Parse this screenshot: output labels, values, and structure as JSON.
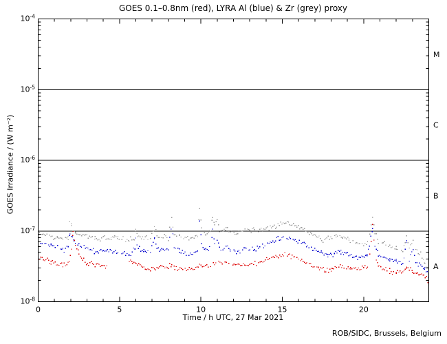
{
  "chart_data": {
    "type": "scatter",
    "title": "GOES 0.1–0.8nm (red), LYRA Al (blue) & Zr (grey) proxy",
    "xlabel": "Time / h UTC, 27 Mar 2021",
    "ylabel": "GOES Irradiance / (W m⁻²)",
    "attribution": "ROB/SIDC, Brussels, Belgium",
    "x_axis": {
      "min": 0,
      "max": 24,
      "minor_step": 1,
      "major_ticks": [
        0,
        5,
        10,
        15,
        20
      ],
      "tick_labels": [
        "0",
        "5",
        "10",
        "15",
        "20"
      ]
    },
    "y_axis": {
      "scale": "log",
      "min": 1e-08,
      "max": 0.0001,
      "ticks": [
        {
          "value": 0.0001,
          "base": "10",
          "exp": "-4"
        },
        {
          "value": 1e-05,
          "base": "10",
          "exp": "-5"
        },
        {
          "value": 1e-06,
          "base": "10",
          "exp": "-6"
        },
        {
          "value": 1e-07,
          "base": "10",
          "exp": "-7"
        },
        {
          "value": 1e-08,
          "base": "10",
          "exp": "-8"
        }
      ]
    },
    "reference_lines": [
      1e-05,
      1e-06,
      1e-07
    ],
    "flare_classes": [
      {
        "label": "M",
        "between": [
          1e-05,
          0.0001
        ]
      },
      {
        "label": "C",
        "between": [
          1e-06,
          1e-05
        ]
      },
      {
        "label": "B",
        "between": [
          1e-07,
          1e-06
        ]
      },
      {
        "label": "A",
        "between": [
          1e-08,
          1e-07
        ]
      }
    ],
    "series": [
      {
        "id": "zr-grey",
        "name": "Zr (grey) proxy",
        "color": "#999999",
        "gaps": [],
        "points": [
          [
            0,
            9.2e-08
          ],
          [
            0.3,
            9e-08
          ],
          [
            0.7,
            8.6e-08
          ],
          [
            1.2,
            8e-08
          ],
          [
            1.6,
            7.8e-08
          ],
          [
            1.85,
            8.2e-08
          ],
          [
            1.95,
            1.55e-07
          ],
          [
            2.05,
            1.1e-07
          ],
          [
            2.3,
            9.3e-08
          ],
          [
            2.6,
            8.8e-08
          ],
          [
            3.0,
            8.3e-08
          ],
          [
            3.5,
            7.9e-08
          ],
          [
            4.0,
            7.6e-08
          ],
          [
            4.5,
            8e-08
          ],
          [
            4.7,
            8.6e-08
          ],
          [
            4.9,
            7.9e-08
          ],
          [
            5.3,
            7.6e-08
          ],
          [
            5.6,
            7.7e-08
          ],
          [
            5.9,
            8e-08
          ],
          [
            6.0,
            1.05e-07
          ],
          [
            6.1,
            8.6e-08
          ],
          [
            6.5,
            7.9e-08
          ],
          [
            6.9,
            7.9e-08
          ],
          [
            7.15,
            1.18e-07
          ],
          [
            7.3,
            9e-08
          ],
          [
            7.6,
            8.4e-08
          ],
          [
            8.0,
            8.1e-08
          ],
          [
            8.2,
            1.5e-07
          ],
          [
            8.35,
            9e-08
          ],
          [
            8.7,
            8.3e-08
          ],
          [
            9.1,
            8e-08
          ],
          [
            9.5,
            8.1e-08
          ],
          [
            9.8,
            8.8e-08
          ],
          [
            9.92,
            2e-07
          ],
          [
            10.05,
            1.1e-07
          ],
          [
            10.3,
            9.2e-08
          ],
          [
            10.6,
            1e-07
          ],
          [
            10.72,
            1.62e-07
          ],
          [
            10.85,
            1.2e-07
          ],
          [
            11.0,
            1.48e-07
          ],
          [
            11.15,
            1.05e-07
          ],
          [
            11.35,
            9.6e-08
          ],
          [
            11.55,
            1.08e-07
          ],
          [
            11.8,
            9.5e-08
          ],
          [
            12.1,
            9.2e-08
          ],
          [
            12.4,
            1e-07
          ],
          [
            12.7,
            1.06e-07
          ],
          [
            13.0,
            1.04e-07
          ],
          [
            13.3,
            1e-07
          ],
          [
            13.7,
            1.03e-07
          ],
          [
            14.1,
            1.07e-07
          ],
          [
            14.5,
            1.15e-07
          ],
          [
            14.9,
            1.22e-07
          ],
          [
            15.3,
            1.3e-07
          ],
          [
            15.6,
            1.26e-07
          ],
          [
            15.9,
            1.18e-07
          ],
          [
            16.2,
            1.12e-07
          ],
          [
            16.5,
            1.02e-07
          ],
          [
            16.8,
            9e-08
          ],
          [
            17.1,
            8.3e-08
          ],
          [
            17.5,
            7.7e-08
          ],
          [
            17.9,
            8e-08
          ],
          [
            18.3,
            8.4e-08
          ],
          [
            18.7,
            8.2e-08
          ],
          [
            19.1,
            7.4e-08
          ],
          [
            19.5,
            6.9e-08
          ],
          [
            20.0,
            6.6e-08
          ],
          [
            20.3,
            6.8e-08
          ],
          [
            20.55,
            1.6e-07
          ],
          [
            20.7,
            1e-07
          ],
          [
            20.9,
            7.3e-08
          ],
          [
            21.2,
            6.6e-08
          ],
          [
            21.6,
            6.1e-08
          ],
          [
            22.0,
            5.6e-08
          ],
          [
            22.4,
            5.2e-08
          ],
          [
            22.65,
            8.6e-08
          ],
          [
            22.8,
            6e-08
          ],
          [
            23.05,
            7.4e-08
          ],
          [
            23.2,
            5.4e-08
          ],
          [
            23.5,
            4.6e-08
          ],
          [
            23.75,
            3.6e-08
          ],
          [
            24,
            2.7e-08
          ]
        ]
      },
      {
        "id": "lyra-al-blue",
        "name": "LYRA Al (blue)",
        "color": "#0000cc",
        "gaps": [],
        "points": [
          [
            0,
            7.2e-08
          ],
          [
            0.4,
            6.8e-08
          ],
          [
            0.8,
            6.3e-08
          ],
          [
            1.2,
            5.8e-08
          ],
          [
            1.6,
            5.5e-08
          ],
          [
            1.85,
            6e-08
          ],
          [
            1.95,
            9.5e-08
          ],
          [
            2.1,
            8e-08
          ],
          [
            2.2,
            7e-08
          ],
          [
            2.5,
            6.3e-08
          ],
          [
            2.9,
            5.7e-08
          ],
          [
            3.3,
            5.3e-08
          ],
          [
            3.7,
            5.2e-08
          ],
          [
            4.1,
            5.4e-08
          ],
          [
            4.5,
            5.1e-08
          ],
          [
            4.9,
            4.9e-08
          ],
          [
            5.3,
            4.7e-08
          ],
          [
            5.7,
            4.8e-08
          ],
          [
            5.95,
            5.4e-08
          ],
          [
            6.0,
            7.6e-08
          ],
          [
            6.15,
            5.8e-08
          ],
          [
            6.5,
            5.2e-08
          ],
          [
            6.9,
            5.1e-08
          ],
          [
            7.15,
            7.8e-08
          ],
          [
            7.3,
            5.8e-08
          ],
          [
            7.6,
            5.5e-08
          ],
          [
            8.0,
            5.3e-08
          ],
          [
            8.2,
            1.25e-07
          ],
          [
            8.35,
            6e-08
          ],
          [
            8.7,
            5.2e-08
          ],
          [
            9.1,
            4.8e-08
          ],
          [
            9.5,
            4.7e-08
          ],
          [
            9.8,
            5.2e-08
          ],
          [
            9.92,
            1.4e-07
          ],
          [
            10.05,
            6.5e-08
          ],
          [
            10.3,
            5.3e-08
          ],
          [
            10.6,
            5.8e-08
          ],
          [
            10.72,
            1.02e-07
          ],
          [
            10.85,
            6.5e-08
          ],
          [
            11.0,
            7.6e-08
          ],
          [
            11.15,
            5.9e-08
          ],
          [
            11.35,
            5.4e-08
          ],
          [
            11.55,
            6e-08
          ],
          [
            11.8,
            5.3e-08
          ],
          [
            12.1,
            4.9e-08
          ],
          [
            12.4,
            5.3e-08
          ],
          [
            12.7,
            5.6e-08
          ],
          [
            13.0,
            5.5e-08
          ],
          [
            13.3,
            5.6e-08
          ],
          [
            13.7,
            6e-08
          ],
          [
            14.1,
            6.5e-08
          ],
          [
            14.5,
            7.2e-08
          ],
          [
            14.9,
            7.8e-08
          ],
          [
            15.2,
            8.4e-08
          ],
          [
            15.5,
            8e-08
          ],
          [
            15.8,
            7.4e-08
          ],
          [
            16.1,
            7e-08
          ],
          [
            16.4,
            6.4e-08
          ],
          [
            16.7,
            5.9e-08
          ],
          [
            17.0,
            5.4e-08
          ],
          [
            17.4,
            4.9e-08
          ],
          [
            17.8,
            4.5e-08
          ],
          [
            18.2,
            4.8e-08
          ],
          [
            18.6,
            5.1e-08
          ],
          [
            19.0,
            4.7e-08
          ],
          [
            19.4,
            4.4e-08
          ],
          [
            19.8,
            4.3e-08
          ],
          [
            20.2,
            4.4e-08
          ],
          [
            20.55,
            1.05e-07
          ],
          [
            20.7,
            6e-08
          ],
          [
            20.9,
            4.7e-08
          ],
          [
            21.2,
            4.2e-08
          ],
          [
            21.6,
            3.9e-08
          ],
          [
            22.0,
            3.7e-08
          ],
          [
            22.4,
            3.5e-08
          ],
          [
            22.65,
            7e-08
          ],
          [
            22.8,
            4e-08
          ],
          [
            23.05,
            5.6e-08
          ],
          [
            23.2,
            3.7e-08
          ],
          [
            23.5,
            3.3e-08
          ],
          [
            23.75,
            2.8e-08
          ],
          [
            24,
            2.2e-08
          ]
        ]
      },
      {
        "id": "goes-red",
        "name": "GOES 0.1–0.8nm (red)",
        "color": "#dd0000",
        "gaps": [
          [
            4.3,
            5.6
          ]
        ],
        "points": [
          [
            0,
            4.1e-08
          ],
          [
            0.4,
            3.9e-08
          ],
          [
            0.8,
            3.6e-08
          ],
          [
            1.2,
            3.4e-08
          ],
          [
            1.6,
            3.4e-08
          ],
          [
            1.9,
            3.7e-08
          ],
          [
            2.05,
            5.5e-08
          ],
          [
            2.15,
            9.3e-08
          ],
          [
            2.3,
            6.5e-08
          ],
          [
            2.5,
            4.8e-08
          ],
          [
            2.8,
            3.9e-08
          ],
          [
            3.1,
            3.5e-08
          ],
          [
            3.5,
            3.3e-08
          ],
          [
            3.9,
            3.2e-08
          ],
          [
            4.3,
            3.1e-08
          ],
          [
            5.6,
            3.8e-08
          ],
          [
            5.8,
            3.6e-08
          ],
          [
            6.1,
            3.3e-08
          ],
          [
            6.5,
            3e-08
          ],
          [
            6.9,
            2.9e-08
          ],
          [
            7.3,
            3.1e-08
          ],
          [
            7.7,
            3.1e-08
          ],
          [
            8.0,
            3e-08
          ],
          [
            8.2,
            3.4e-08
          ],
          [
            8.4,
            3e-08
          ],
          [
            8.8,
            2.9e-08
          ],
          [
            9.2,
            2.9e-08
          ],
          [
            9.6,
            2.9e-08
          ],
          [
            9.92,
            3.3e-08
          ],
          [
            10.2,
            3.1e-08
          ],
          [
            10.6,
            3.3e-08
          ],
          [
            11.0,
            3.5e-08
          ],
          [
            11.4,
            3.6e-08
          ],
          [
            11.8,
            3.5e-08
          ],
          [
            12.2,
            3.4e-08
          ],
          [
            12.6,
            3.3e-08
          ],
          [
            13.0,
            3.4e-08
          ],
          [
            13.4,
            3.5e-08
          ],
          [
            13.8,
            3.7e-08
          ],
          [
            14.2,
            4e-08
          ],
          [
            14.6,
            4.3e-08
          ],
          [
            15.0,
            4.6e-08
          ],
          [
            15.3,
            4.8e-08
          ],
          [
            15.6,
            4.5e-08
          ],
          [
            15.9,
            4.2e-08
          ],
          [
            16.2,
            3.9e-08
          ],
          [
            16.5,
            3.5e-08
          ],
          [
            16.8,
            3.2e-08
          ],
          [
            17.2,
            3e-08
          ],
          [
            17.6,
            2.8e-08
          ],
          [
            18.0,
            2.9e-08
          ],
          [
            18.4,
            3.1e-08
          ],
          [
            18.8,
            3e-08
          ],
          [
            19.2,
            3e-08
          ],
          [
            19.6,
            2.9e-08
          ],
          [
            20.0,
            3e-08
          ],
          [
            20.3,
            3.1e-08
          ],
          [
            20.55,
            1.2e-07
          ],
          [
            20.7,
            5e-08
          ],
          [
            20.9,
            3.3e-08
          ],
          [
            21.2,
            2.9e-08
          ],
          [
            21.6,
            2.7e-08
          ],
          [
            22.0,
            2.6e-08
          ],
          [
            22.4,
            2.6e-08
          ],
          [
            22.65,
            3.2e-08
          ],
          [
            23.0,
            2.6e-08
          ],
          [
            23.4,
            2.5e-08
          ],
          [
            23.7,
            2.3e-08
          ],
          [
            24,
            2e-08
          ]
        ]
      }
    ]
  }
}
